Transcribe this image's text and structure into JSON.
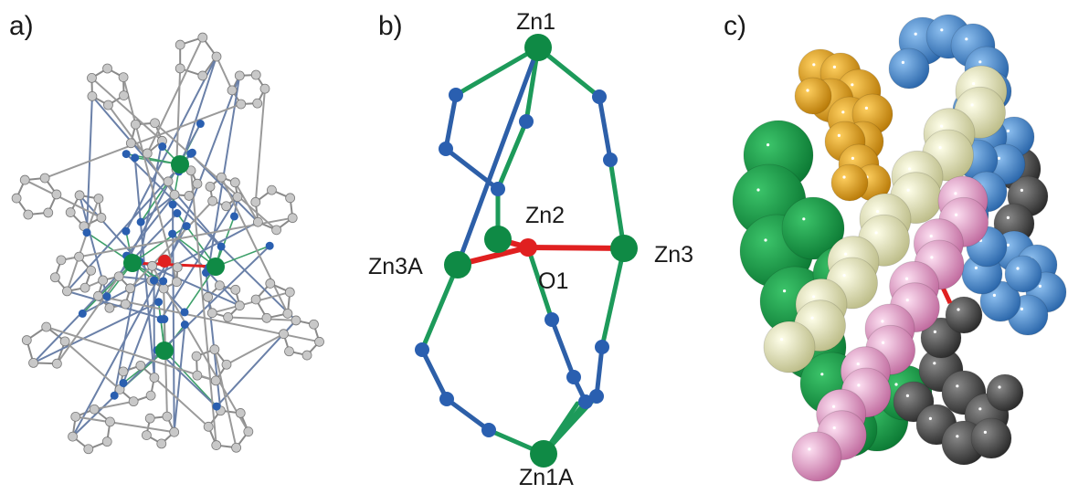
{
  "panels": {
    "a": {
      "label": "a)"
    },
    "b": {
      "label": "b)"
    },
    "c": {
      "label": "c)"
    }
  },
  "atom_labels": {
    "zn1": "Zn1",
    "zn2": "Zn2",
    "zn3": "Zn3",
    "zn3a": "Zn3A",
    "zn1a": "Zn1A",
    "o1": "O1"
  },
  "colors": {
    "zinc": "#0f8a45",
    "nitrogen": "#2a5fb0",
    "carbon": "#a8a8a8",
    "oxygen": "#e02020",
    "bond_zn_n": "#1d9a5a",
    "bond_n_n": "#2d5fa8",
    "spacefill_green": "#14a04a",
    "spacefill_orange": "#e8a514",
    "spacefill_blue": "#4a8fd4",
    "spacefill_yellow": "#eeeec0",
    "spacefill_pink": "#e8a8d0",
    "spacefill_gray": "#505050"
  }
}
